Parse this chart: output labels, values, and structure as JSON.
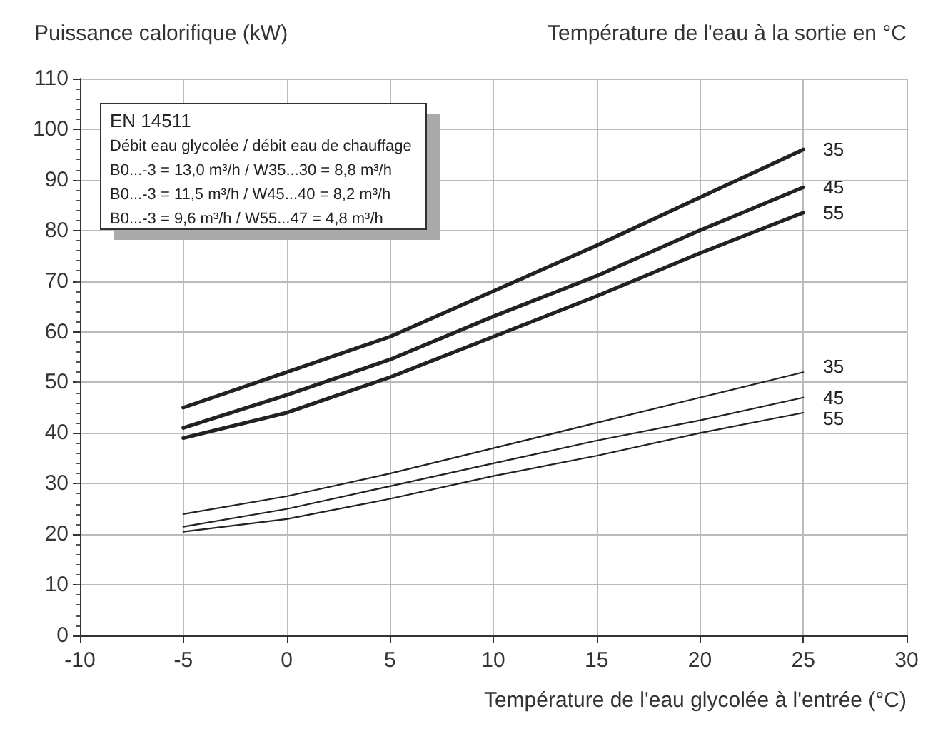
{
  "chart_data": {
    "type": "line",
    "ylabel": "Puissance calorifique (kW)",
    "legend_title": "Température de l'eau à la sortie en °C",
    "xlabel": "Température de l'eau glycolée à l'entrée (°C)",
    "annotations": [
      "EN 14511",
      "Débit eau glycolée / débit eau de chauffage",
      "B0...-3 = 13,0 m³/h / W35...30 = 8,8 m³/h",
      "B0...-3 = 11,5 m³/h / W45...40 = 8,2 m³/h",
      "B0...-3 = 9,6 m³/h / W55...47 = 4,8 m³/h"
    ],
    "x": [
      -5,
      0,
      5,
      10,
      15,
      20,
      25
    ],
    "series": [
      {
        "name": "35",
        "color": "#222222",
        "values": [
          45,
          52,
          59,
          68,
          77,
          86.5,
          96
        ]
      },
      {
        "name": "45",
        "color": "#222222",
        "values": [
          41,
          47.5,
          54.5,
          63,
          71,
          80,
          88.5
        ]
      },
      {
        "name": "55",
        "color": "#222222",
        "values": [
          39,
          44,
          51,
          59,
          67,
          75.5,
          83.5
        ]
      },
      {
        "name": "35",
        "color": "#222222",
        "values": [
          24,
          27.5,
          32,
          37,
          42,
          47,
          52
        ]
      },
      {
        "name": "45",
        "color": "#222222",
        "values": [
          21.5,
          25,
          29.5,
          34,
          38.5,
          42.5,
          47
        ]
      },
      {
        "name": "55",
        "color": "#222222",
        "values": [
          20.5,
          23,
          27,
          31.5,
          35.5,
          40,
          44
        ]
      }
    ],
    "xlim": [
      -10,
      30
    ],
    "xticks": [
      -10,
      -5,
      0,
      5,
      10,
      15,
      20,
      25,
      30
    ],
    "ylim": [
      0,
      110
    ],
    "yticks": [
      0,
      10,
      20,
      30,
      40,
      50,
      60,
      70,
      80,
      90,
      100,
      110
    ],
    "grid": true,
    "marker": "none",
    "line_style": "solid",
    "legend": false
  }
}
